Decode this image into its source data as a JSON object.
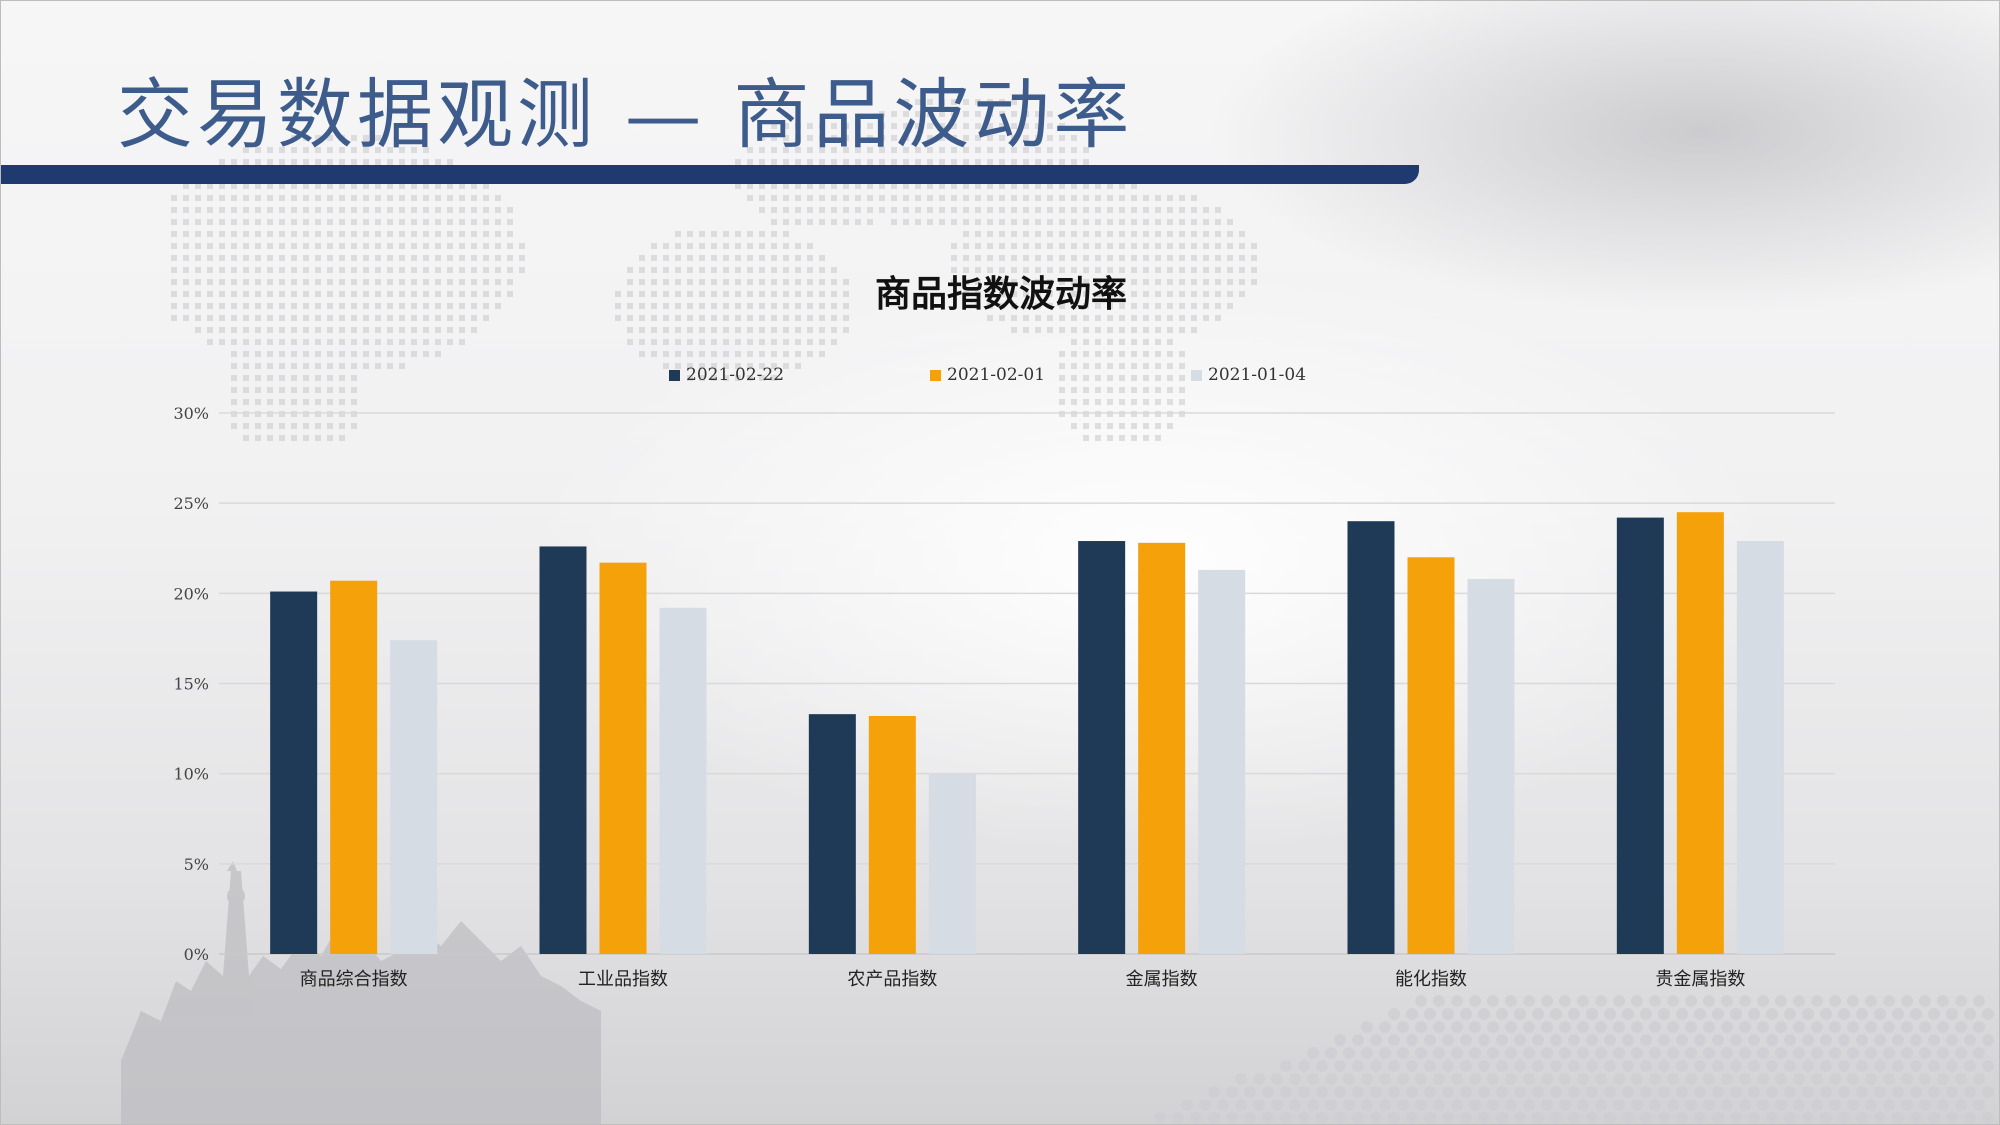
{
  "slide": {
    "title": "交易数据观测 — 商品波动率",
    "band_color": "#1e3a6f",
    "title_color": "#3d5c8c"
  },
  "chart_data": {
    "type": "bar",
    "title": "商品指数波动率",
    "xlabel": "",
    "ylabel": "",
    "ylim": [
      0,
      0.3
    ],
    "y_ticks": [
      "0%",
      "5%",
      "10%",
      "15%",
      "20%",
      "25%",
      "30%"
    ],
    "grid": true,
    "legend_position": "top",
    "categories": [
      "商品综合指数",
      "工业品指数",
      "农产品指数",
      "金属指数",
      "能化指数",
      "贵金属指数"
    ],
    "series": [
      {
        "name": "2021-02-22",
        "color": "#1f3a56",
        "values": [
          0.201,
          0.226,
          0.133,
          0.229,
          0.24,
          0.242
        ]
      },
      {
        "name": "2021-02-01",
        "color": "#f5a20a",
        "values": [
          0.207,
          0.217,
          0.132,
          0.228,
          0.22,
          0.245
        ]
      },
      {
        "name": "2021-01-04",
        "color": "#d6dce3",
        "values": [
          0.174,
          0.192,
          0.1,
          0.213,
          0.208,
          0.229
        ]
      }
    ]
  }
}
